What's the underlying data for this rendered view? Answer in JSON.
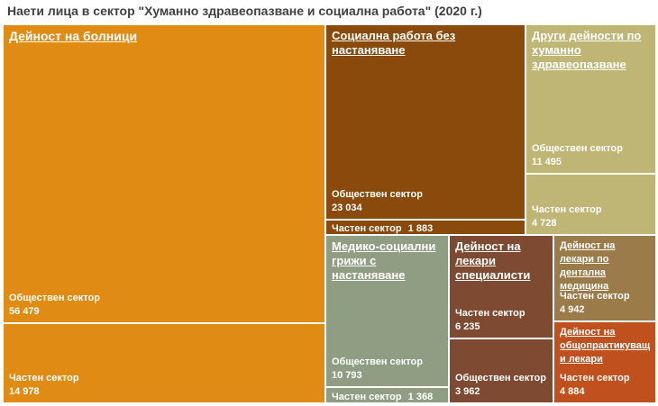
{
  "title": "Наети лица в сектор \"Хуманно здравеопазване и социална работа\" (2020 г.)",
  "chart_data": {
    "type": "treemap",
    "title": "Наети лица в сектор \"Хуманно здравеопазване и социална работа\" (2020 г.)",
    "groups": [
      {
        "name": "Дейност на болници",
        "color": "#E08B14",
        "items": [
          {
            "label": "Обществен сектор",
            "value_text": "56 479",
            "value": 56479
          },
          {
            "label": "Частен сектор",
            "value_text": "14 978",
            "value": 14978
          }
        ]
      },
      {
        "name": "Социална работа без настаняване",
        "color": "#8A4A0C",
        "items": [
          {
            "label": "Обществен сектор",
            "value_text": "23 034",
            "value": 23034
          },
          {
            "label": "Частен сектор",
            "value_text": "1 883",
            "value": 1883
          }
        ]
      },
      {
        "name": "Други дейности по хуманно здравеопазване",
        "color": "#BFB675",
        "items": [
          {
            "label": "Обществен сектор",
            "value_text": "11 495",
            "value": 11495
          },
          {
            "label": "Частен сектор",
            "value_text": "4 728",
            "value": 4728
          }
        ]
      },
      {
        "name": "Медико-социални грижи с настаняване",
        "color": "#8F9E83",
        "items": [
          {
            "label": "Обществен сектор",
            "value_text": "10 793",
            "value": 10793
          },
          {
            "label": "Частен сектор",
            "value_text": "1 368",
            "value": 1368
          }
        ]
      },
      {
        "name": "Дейност на лекари специалисти",
        "color": "#7F4A32",
        "items": [
          {
            "label": "Частен сектор",
            "value_text": "6 235",
            "value": 6235
          },
          {
            "label": "Обществен сектор",
            "value_text": "3 962",
            "value": 3962
          }
        ]
      },
      {
        "name": "Дейност на лекари по дентална медицина",
        "color": "#9B7B49",
        "items": [
          {
            "label": "Частен сектор",
            "value_text": "4 942",
            "value": 4942
          }
        ]
      },
      {
        "name": "Дейност на общопрактикуващ и лекари",
        "color": "#C0501E",
        "items": [
          {
            "label": "Частен сектор",
            "value_text": "4 884",
            "value": 4884
          }
        ]
      }
    ]
  }
}
